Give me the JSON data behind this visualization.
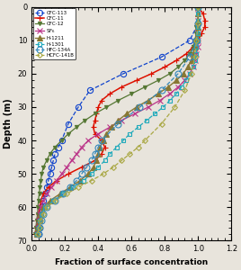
{
  "xlabel": "Fraction of surface concentration",
  "ylabel": "Depth (m)",
  "xlim": [
    0.0,
    1.2
  ],
  "ylim": [
    70,
    0
  ],
  "xticks": [
    0.0,
    0.2,
    0.4,
    0.6,
    0.8,
    1.0,
    1.2
  ],
  "yticks": [
    0,
    10,
    20,
    30,
    40,
    50,
    60,
    70
  ],
  "bg_color": "#e8e4dc",
  "series": [
    {
      "label": "CFC-113",
      "color": "#1144cc",
      "marker": "o",
      "markersize": 4.5,
      "markerfacecolor": "none",
      "linestyle": "--",
      "linewidth": 0.9,
      "depth": [
        0,
        5,
        10,
        15,
        20,
        25,
        30,
        35,
        40,
        42,
        44,
        46,
        48,
        50,
        52,
        54,
        56,
        58,
        60,
        62,
        64,
        66,
        68
      ],
      "fraction": [
        1.0,
        1.0,
        0.95,
        0.78,
        0.55,
        0.35,
        0.28,
        0.22,
        0.18,
        0.16,
        0.14,
        0.13,
        0.12,
        0.11,
        0.1,
        0.09,
        0.08,
        0.07,
        0.06,
        0.055,
        0.05,
        0.045,
        0.04
      ]
    },
    {
      "label": "CFC-11",
      "color": "#dd1100",
      "marker": "+",
      "markersize": 5,
      "markerfacecolor": "#dd1100",
      "linestyle": "-",
      "linewidth": 1.1,
      "depth": [
        0,
        2,
        4,
        6,
        8,
        10,
        12,
        14,
        16,
        18,
        20,
        22,
        24,
        26,
        28,
        30,
        32,
        34,
        36,
        38,
        40,
        42,
        44,
        46,
        48,
        50,
        52,
        54,
        56,
        58,
        60,
        62,
        64,
        66,
        68
      ],
      "fraction": [
        1.0,
        1.03,
        1.04,
        1.04,
        1.02,
        1.0,
        0.97,
        0.93,
        0.87,
        0.8,
        0.72,
        0.63,
        0.54,
        0.47,
        0.42,
        0.4,
        0.39,
        0.38,
        0.37,
        0.38,
        0.42,
        0.44,
        0.42,
        0.38,
        0.3,
        0.22,
        0.15,
        0.1,
        0.07,
        0.055,
        0.05,
        0.04,
        0.035,
        0.03,
        0.025
      ]
    },
    {
      "label": "CFC-12",
      "color": "#557733",
      "marker": "v",
      "markersize": 3,
      "markerfacecolor": "#557733",
      "linestyle": "-",
      "linewidth": 0.9,
      "depth": [
        0,
        2,
        4,
        6,
        8,
        10,
        12,
        14,
        16,
        18,
        20,
        22,
        24,
        26,
        28,
        30,
        32,
        34,
        36,
        38,
        40,
        42,
        44,
        46,
        48,
        50,
        52,
        54,
        56,
        58,
        60,
        62,
        64,
        66,
        68
      ],
      "fraction": [
        1.0,
        1.0,
        1.0,
        0.99,
        0.99,
        0.98,
        0.97,
        0.95,
        0.92,
        0.88,
        0.83,
        0.76,
        0.68,
        0.6,
        0.52,
        0.45,
        0.38,
        0.32,
        0.27,
        0.22,
        0.18,
        0.14,
        0.11,
        0.09,
        0.07,
        0.06,
        0.055,
        0.05,
        0.045,
        0.04,
        0.038,
        0.035,
        0.03,
        0.025,
        0.02
      ]
    },
    {
      "label": "SF$_6$",
      "color": "#bb3388",
      "marker": "x",
      "markersize": 4,
      "markerfacecolor": "#bb3388",
      "linestyle": "-",
      "linewidth": 0.9,
      "depth": [
        0,
        2,
        4,
        6,
        8,
        10,
        12,
        14,
        16,
        18,
        20,
        22,
        24,
        26,
        28,
        30,
        32,
        34,
        36,
        38,
        40,
        42,
        44,
        46,
        48,
        50,
        52,
        54,
        56,
        58,
        60,
        62,
        64,
        66,
        68
      ],
      "fraction": [
        1.0,
        1.0,
        1.0,
        1.0,
        1.0,
        1.0,
        1.0,
        0.99,
        0.98,
        0.97,
        0.95,
        0.92,
        0.88,
        0.83,
        0.77,
        0.7,
        0.62,
        0.54,
        0.47,
        0.4,
        0.34,
        0.3,
        0.27,
        0.24,
        0.21,
        0.18,
        0.15,
        0.12,
        0.09,
        0.07,
        0.055,
        0.045,
        0.04,
        0.035,
        0.03
      ]
    },
    {
      "label": "H-1211",
      "color": "#887733",
      "marker": "^",
      "markersize": 4,
      "markerfacecolor": "#887733",
      "linestyle": "-",
      "linewidth": 1.0,
      "depth": [
        0,
        2,
        4,
        6,
        8,
        10,
        12,
        14,
        16,
        18,
        20,
        22,
        24,
        26,
        28,
        30,
        32,
        34,
        36,
        38,
        40,
        42,
        44,
        46,
        48,
        50,
        52,
        54,
        56,
        58,
        60,
        62,
        64,
        66,
        68
      ],
      "fraction": [
        1.0,
        1.0,
        1.0,
        1.0,
        1.0,
        0.99,
        0.98,
        0.97,
        0.96,
        0.94,
        0.91,
        0.87,
        0.82,
        0.76,
        0.7,
        0.63,
        0.57,
        0.52,
        0.48,
        0.45,
        0.43,
        0.41,
        0.4,
        0.39,
        0.37,
        0.34,
        0.29,
        0.23,
        0.17,
        0.11,
        0.07,
        0.055,
        0.045,
        0.038,
        0.03
      ]
    },
    {
      "label": "H-1301",
      "color": "#22aabb",
      "marker": "s",
      "markersize": 3,
      "markerfacecolor": "none",
      "linestyle": "--",
      "linewidth": 0.9,
      "depth": [
        0,
        2,
        4,
        6,
        8,
        10,
        12,
        14,
        16,
        18,
        20,
        22,
        24,
        26,
        28,
        30,
        32,
        34,
        36,
        38,
        40,
        42,
        44,
        46,
        48,
        50,
        52,
        54,
        56,
        58,
        60,
        62,
        64,
        66,
        68
      ],
      "fraction": [
        1.0,
        1.0,
        1.0,
        1.0,
        1.0,
        1.0,
        0.99,
        0.99,
        0.98,
        0.97,
        0.95,
        0.93,
        0.9,
        0.87,
        0.83,
        0.79,
        0.74,
        0.69,
        0.64,
        0.59,
        0.55,
        0.51,
        0.47,
        0.44,
        0.4,
        0.36,
        0.31,
        0.25,
        0.19,
        0.13,
        0.08,
        0.06,
        0.05,
        0.04,
        0.03
      ]
    },
    {
      "label": "HFC-134A",
      "color": "#3388bb",
      "marker": "o",
      "markersize": 5,
      "markerfacecolor": "none",
      "linestyle": "--",
      "linewidth": 0.9,
      "depth": [
        0,
        5,
        10,
        15,
        20,
        25,
        30,
        35,
        40,
        42,
        44,
        46,
        48,
        50,
        52,
        54,
        56,
        58,
        60,
        62,
        64,
        66,
        68
      ],
      "fraction": [
        1.0,
        1.0,
        0.99,
        0.95,
        0.88,
        0.78,
        0.65,
        0.52,
        0.42,
        0.4,
        0.38,
        0.36,
        0.33,
        0.3,
        0.27,
        0.23,
        0.19,
        0.14,
        0.09,
        0.07,
        0.06,
        0.05,
        0.04
      ]
    },
    {
      "label": "HCFC-141B",
      "color": "#aaa844",
      "marker": "D",
      "markersize": 3,
      "markerfacecolor": "none",
      "linestyle": "--",
      "linewidth": 0.9,
      "depth": [
        0,
        5,
        10,
        15,
        20,
        25,
        30,
        35,
        40,
        42,
        44,
        46,
        48,
        50,
        52,
        54,
        56,
        58,
        60,
        62,
        64,
        66,
        68
      ],
      "fraction": [
        1.0,
        1.0,
        0.99,
        0.98,
        0.96,
        0.92,
        0.86,
        0.78,
        0.68,
        0.64,
        0.59,
        0.54,
        0.49,
        0.43,
        0.36,
        0.28,
        0.21,
        0.14,
        0.09,
        0.07,
        0.055,
        0.045,
        0.035
      ]
    }
  ]
}
